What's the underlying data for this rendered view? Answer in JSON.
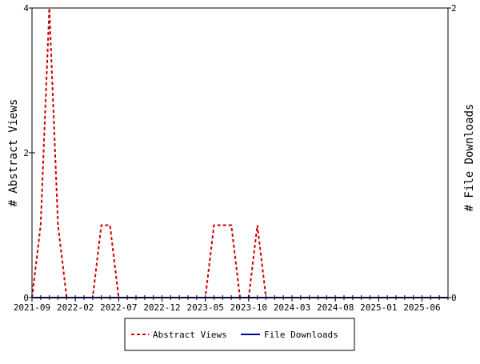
{
  "chart_data": {
    "type": "line",
    "title": "",
    "x_tick_labels": [
      "2021-09",
      "2022-02",
      "2022-07",
      "2022-12",
      "2023-05",
      "2023-10",
      "2024-03",
      "2024-08",
      "2025-01",
      "2025-06"
    ],
    "y_left": {
      "label": "# Abstract Views",
      "ylim": [
        0,
        4
      ],
      "ticks": [
        "0",
        "2",
        "4"
      ]
    },
    "y_right": {
      "label": "# File Downloads",
      "ylim": [
        0,
        2
      ],
      "ticks": [
        "0",
        "2"
      ]
    },
    "series": [
      {
        "name": "Abstract Views",
        "color": "#cc0000",
        "dash": "dashed",
        "axis": "left",
        "points": [
          [
            "2021-09",
            0
          ],
          [
            "2021-10",
            1
          ],
          [
            "2021-11",
            4
          ],
          [
            "2021-12",
            1
          ],
          [
            "2022-01",
            0
          ],
          [
            "2022-02",
            0
          ],
          [
            "2022-03",
            0
          ],
          [
            "2022-04",
            0
          ],
          [
            "2022-05",
            1
          ],
          [
            "2022-06",
            1
          ],
          [
            "2022-07",
            0
          ],
          [
            "2022-08",
            0
          ],
          [
            "2022-09",
            0
          ],
          [
            "2022-10",
            0
          ],
          [
            "2022-11",
            0
          ],
          [
            "2022-12",
            0
          ],
          [
            "2023-01",
            0
          ],
          [
            "2023-02",
            0
          ],
          [
            "2023-03",
            0
          ],
          [
            "2023-04",
            0
          ],
          [
            "2023-05",
            0
          ],
          [
            "2023-06",
            1
          ],
          [
            "2023-07",
            1
          ],
          [
            "2023-08",
            1
          ],
          [
            "2023-09",
            0
          ],
          [
            "2023-10",
            0
          ],
          [
            "2023-11",
            1
          ],
          [
            "2023-12",
            0
          ],
          [
            "2024-01",
            0
          ],
          [
            "2024-02",
            0
          ],
          [
            "2024-03",
            0
          ],
          [
            "2024-04",
            0
          ],
          [
            "2024-05",
            0
          ],
          [
            "2024-06",
            0
          ],
          [
            "2024-07",
            0
          ],
          [
            "2024-08",
            0
          ],
          [
            "2024-09",
            0
          ],
          [
            "2024-10",
            0
          ],
          [
            "2024-11",
            0
          ],
          [
            "2024-12",
            0
          ],
          [
            "2025-01",
            0
          ],
          [
            "2025-02",
            0
          ],
          [
            "2025-03",
            0
          ],
          [
            "2025-04",
            0
          ],
          [
            "2025-05",
            0
          ],
          [
            "2025-06",
            0
          ],
          [
            "2025-07",
            0
          ],
          [
            "2025-08",
            0
          ],
          [
            "2025-09",
            0
          ]
        ]
      },
      {
        "name": "File Downloads",
        "color": "#000099",
        "dash": "solid",
        "axis": "right",
        "points": [
          [
            "2021-09",
            0
          ],
          [
            "2021-10",
            0
          ],
          [
            "2021-11",
            0
          ],
          [
            "2021-12",
            0
          ],
          [
            "2022-01",
            0
          ],
          [
            "2022-02",
            0
          ],
          [
            "2022-03",
            0
          ],
          [
            "2022-04",
            0
          ],
          [
            "2022-05",
            0
          ],
          [
            "2022-06",
            0
          ],
          [
            "2022-07",
            0
          ],
          [
            "2022-08",
            0
          ],
          [
            "2022-09",
            0
          ],
          [
            "2022-10",
            0
          ],
          [
            "2022-11",
            0
          ],
          [
            "2022-12",
            0
          ],
          [
            "2023-01",
            0
          ],
          [
            "2023-02",
            0
          ],
          [
            "2023-03",
            0
          ],
          [
            "2023-04",
            0
          ],
          [
            "2023-05",
            0
          ],
          [
            "2023-06",
            0
          ],
          [
            "2023-07",
            0
          ],
          [
            "2023-08",
            0
          ],
          [
            "2023-09",
            0
          ],
          [
            "2023-10",
            0
          ],
          [
            "2023-11",
            0
          ],
          [
            "2023-12",
            0
          ],
          [
            "2024-01",
            0
          ],
          [
            "2024-02",
            0
          ],
          [
            "2024-03",
            0
          ],
          [
            "2024-04",
            0
          ],
          [
            "2024-05",
            0
          ],
          [
            "2024-06",
            0
          ],
          [
            "2024-07",
            0
          ],
          [
            "2024-08",
            0
          ],
          [
            "2024-09",
            0
          ],
          [
            "2024-10",
            0
          ],
          [
            "2024-11",
            0
          ],
          [
            "2024-12",
            0
          ],
          [
            "2025-01",
            0
          ],
          [
            "2025-02",
            0
          ],
          [
            "2025-03",
            0
          ],
          [
            "2025-04",
            0
          ],
          [
            "2025-05",
            0
          ],
          [
            "2025-06",
            0
          ],
          [
            "2025-07",
            0
          ],
          [
            "2025-08",
            0
          ],
          [
            "2025-09",
            0
          ]
        ]
      }
    ],
    "grid": false,
    "legend": {
      "placement": "bottom-center",
      "entries": [
        "Abstract Views",
        "File Downloads"
      ]
    }
  }
}
